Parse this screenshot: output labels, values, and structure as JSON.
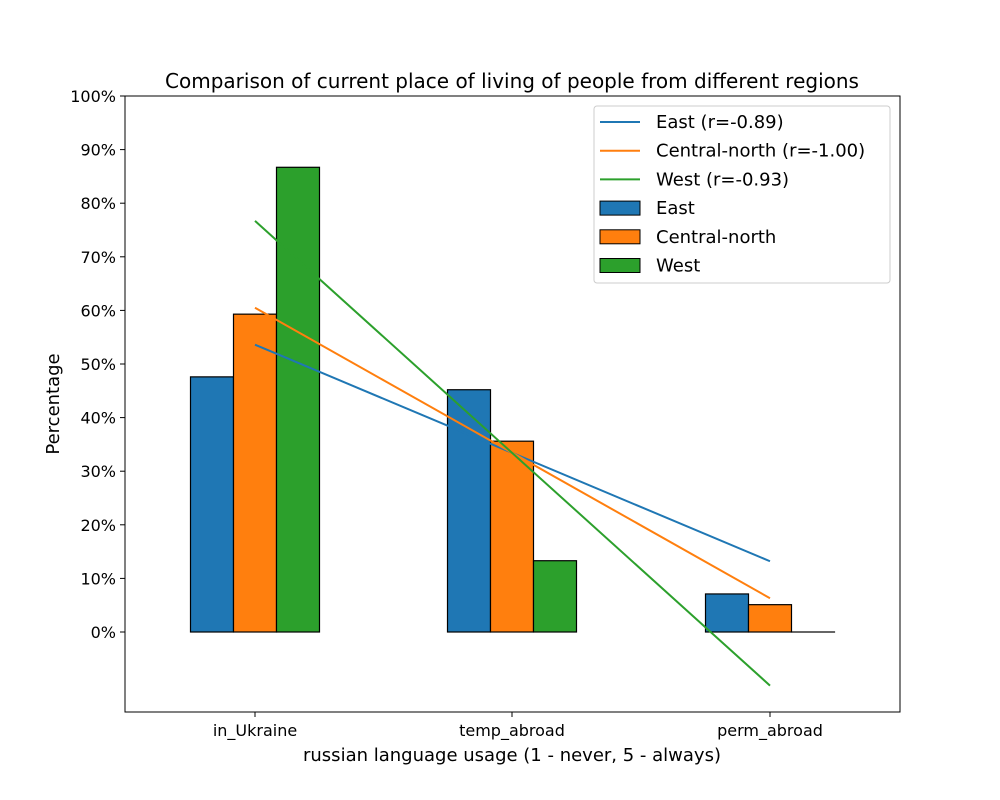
{
  "chart_data": {
    "type": "bar",
    "title": "Comparison of current place of living of people from different regions",
    "xlabel": "russian language usage (1 - never, 5 - always)",
    "ylabel": "Percentage",
    "categories": [
      "in_Ukraine",
      "temp_abroad",
      "perm_abroad"
    ],
    "ylim": [
      -15,
      100
    ],
    "yticks": [
      0,
      10,
      20,
      30,
      40,
      50,
      60,
      70,
      80,
      90,
      100
    ],
    "ytick_labels": [
      "0%",
      "10%",
      "20%",
      "30%",
      "40%",
      "50%",
      "60%",
      "70%",
      "80%",
      "90%",
      "100%"
    ],
    "grid": false,
    "legend_position": "top-right",
    "series": [
      {
        "name": "East",
        "color": "#1f77b4",
        "values": [
          47.6,
          45.2,
          7.1
        ]
      },
      {
        "name": "Central-north",
        "color": "#ff7f0e",
        "values": [
          59.3,
          35.6,
          5.1
        ]
      },
      {
        "name": "West",
        "color": "#2ca02c",
        "values": [
          86.7,
          13.3,
          0.0
        ]
      }
    ],
    "trend_lines": [
      {
        "name": "East (r=-0.89)",
        "color": "#1f77b4",
        "start": 53.6,
        "end": 13.2
      },
      {
        "name": "Central-north (r=-1.00)",
        "color": "#ff7f0e",
        "start": 60.5,
        "end": 6.3
      },
      {
        "name": "West (r=-0.93)",
        "color": "#2ca02c",
        "start": 76.7,
        "end": -10.0
      }
    ]
  }
}
